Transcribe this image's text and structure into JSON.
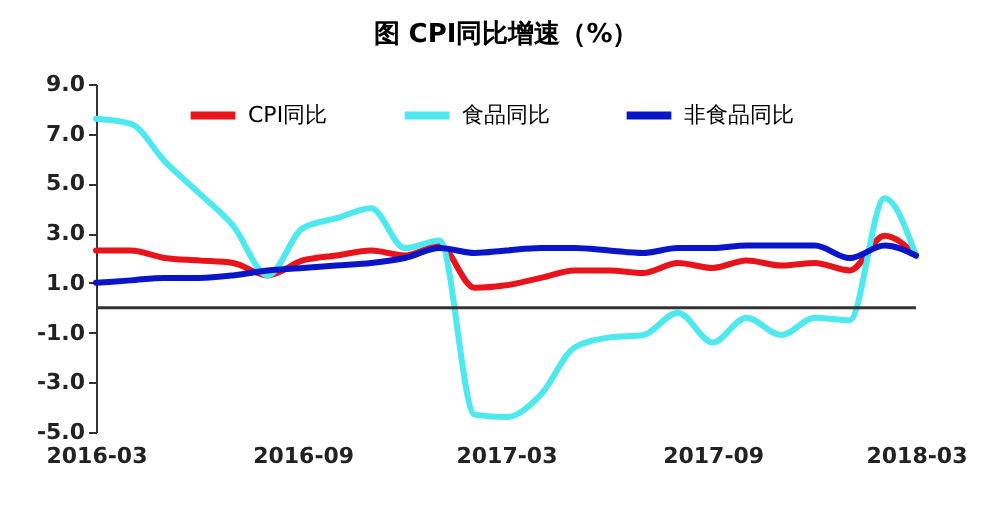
{
  "chart_data": {
    "type": "line",
    "title": "图  CPI同比增速（%）",
    "x": [
      "2016-03",
      "2016-04",
      "2016-05",
      "2016-06",
      "2016-07",
      "2016-08",
      "2016-09",
      "2016-10",
      "2016-11",
      "2016-12",
      "2017-01",
      "2017-02",
      "2017-03",
      "2017-04",
      "2017-05",
      "2017-06",
      "2017-07",
      "2017-08",
      "2017-09",
      "2017-10",
      "2017-11",
      "2017-12",
      "2018-01",
      "2018-02",
      "2018-03"
    ],
    "series": [
      {
        "name": "CPI同比",
        "color": "#e8141b",
        "values": [
          2.3,
          2.3,
          2.0,
          1.9,
          1.8,
          1.3,
          1.9,
          2.1,
          2.3,
          2.1,
          2.5,
          0.8,
          0.9,
          1.2,
          1.5,
          1.5,
          1.4,
          1.8,
          1.6,
          1.9,
          1.7,
          1.8,
          1.5,
          2.9,
          2.1
        ]
      },
      {
        "name": "食品同比",
        "color": "#4de8f0",
        "values": [
          7.6,
          7.4,
          5.9,
          4.6,
          3.3,
          1.3,
          3.2,
          3.6,
          4.0,
          2.4,
          2.7,
          -4.3,
          -4.4,
          -3.5,
          -1.6,
          -1.2,
          -1.1,
          -0.2,
          -1.4,
          -0.4,
          -1.1,
          -0.4,
          -0.5,
          4.4,
          2.1
        ]
      },
      {
        "name": "非食品同比",
        "color": "#0a14c8",
        "values": [
          1.0,
          1.1,
          1.2,
          1.2,
          1.3,
          1.5,
          1.6,
          1.7,
          1.8,
          2.0,
          2.4,
          2.2,
          2.3,
          2.4,
          2.4,
          2.3,
          2.2,
          2.4,
          2.4,
          2.5,
          2.5,
          2.5,
          2.0,
          2.5,
          2.1
        ]
      }
    ],
    "xlim": [
      "2016-03",
      "2018-03"
    ],
    "xticks": [
      "2016-03",
      "2016-09",
      "2017-03",
      "2017-09",
      "2018-03"
    ],
    "ylim": [
      -5,
      9
    ],
    "yticks": [
      {
        "value": -5,
        "label": "-5.0"
      },
      {
        "value": -3,
        "label": "-3.0"
      },
      {
        "value": -1,
        "label": "-1.0"
      },
      {
        "value": 1,
        "label": "1.0"
      },
      {
        "value": 3,
        "label": "3.0"
      },
      {
        "value": 5,
        "label": "5.0"
      },
      {
        "value": 7,
        "label": "7.0"
      },
      {
        "value": 9,
        "label": "9.0"
      }
    ],
    "ref_lines": [
      {
        "axis": "y",
        "value": 0,
        "color": "#333333"
      }
    ],
    "grid": false,
    "legend": "top",
    "marker": "none",
    "line_style": "solid"
  }
}
